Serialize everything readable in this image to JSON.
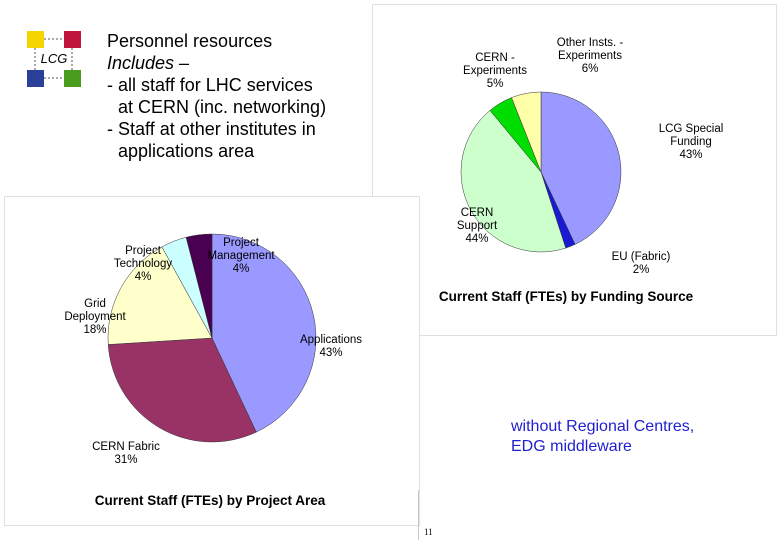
{
  "logo": {
    "text": "LCG",
    "colors": [
      "#f5d400",
      "#c0143c",
      "#2a3f9a",
      "#4a9c1e"
    ]
  },
  "header": {
    "lines": [
      "Personnel resources",
      "Includes –",
      "- all staff for LHC services",
      "at CERN (inc. networking)",
      "- Staff at other institutes in",
      "applications area"
    ]
  },
  "chart_data": [
    {
      "type": "pie",
      "title": "Current Staff (FTEs) by Funding Source",
      "slices": [
        {
          "label": [
            "LCG Special",
            "Funding"
          ],
          "value": 43,
          "display": "43%",
          "color": "#9999ff"
        },
        {
          "label": [
            "EU (Fabric)"
          ],
          "value": 2,
          "display": "2%",
          "color": "#1a1ad4"
        },
        {
          "label": [
            "CERN",
            "Support"
          ],
          "value": 44,
          "display": "44%",
          "color": "#ccffcc"
        },
        {
          "label": [
            "CERN -",
            "Experiments"
          ],
          "value": 5,
          "display": "5%",
          "color": "#00dd00"
        },
        {
          "label": [
            "Other Insts. -",
            "Experiments"
          ],
          "value": 6,
          "display": "6%",
          "color": "#ffffaa"
        }
      ]
    },
    {
      "type": "pie",
      "title": "Current Staff (FTEs) by Project Area",
      "slices": [
        {
          "label": [
            "Applications"
          ],
          "value": 43,
          "display": "43%",
          "color": "#9999ff"
        },
        {
          "label": [
            "CERN Fabric"
          ],
          "value": 31,
          "display": "31%",
          "color": "#993366"
        },
        {
          "label": [
            "Grid",
            "Deployment"
          ],
          "value": 18,
          "display": "18%",
          "color": "#ffffcc"
        },
        {
          "label": [
            "Project",
            "Technology"
          ],
          "value": 4,
          "display": "4%",
          "color": "#ccffff"
        },
        {
          "label": [
            "Project",
            "Management"
          ],
          "value": 4,
          "display": "4%",
          "color": "#4a0050"
        }
      ]
    }
  ],
  "note": {
    "lines": [
      "without Regional Centres,",
      "EDG middleware"
    ]
  },
  "page_number": "11"
}
